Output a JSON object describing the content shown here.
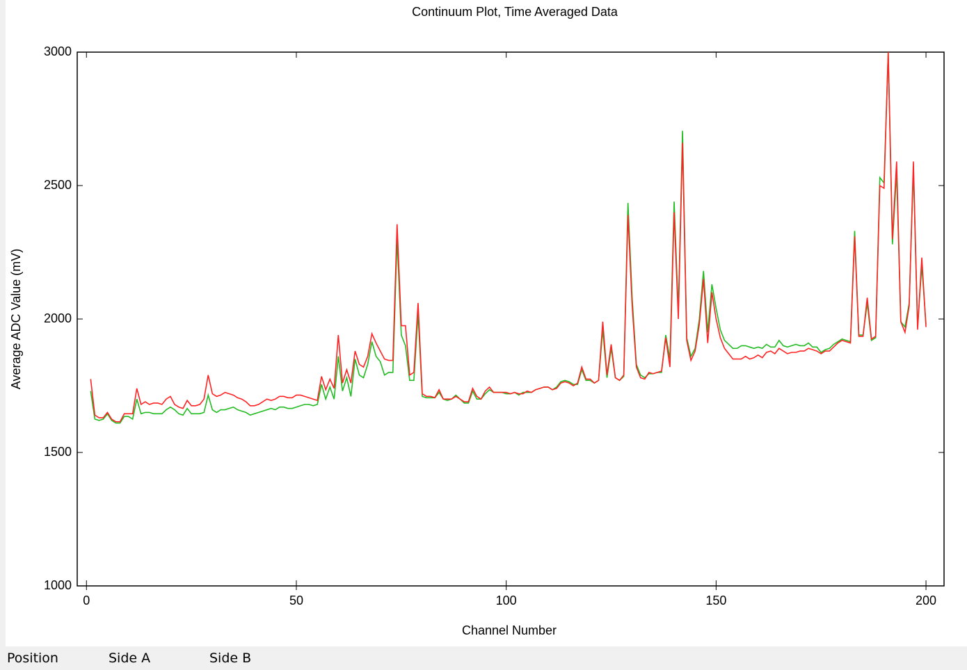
{
  "chart_data": {
    "type": "line",
    "title": "Continuum Plot, Time Averaged Data",
    "x_label": "Channel Number",
    "y_label": "Average ADC Value (mV)",
    "x": [
      1,
      2,
      3,
      4,
      5,
      6,
      7,
      8,
      9,
      10,
      11,
      12,
      13,
      14,
      15,
      16,
      17,
      18,
      19,
      20,
      21,
      22,
      23,
      24,
      25,
      26,
      27,
      28,
      29,
      30,
      31,
      32,
      33,
      34,
      35,
      36,
      37,
      38,
      39,
      40,
      41,
      42,
      43,
      44,
      45,
      46,
      47,
      48,
      49,
      50,
      51,
      52,
      53,
      54,
      55,
      56,
      57,
      58,
      59,
      60,
      61,
      62,
      63,
      64,
      65,
      66,
      67,
      68,
      69,
      70,
      71,
      72,
      73,
      74,
      75,
      76,
      77,
      78,
      79,
      80,
      81,
      82,
      83,
      84,
      85,
      86,
      87,
      88,
      89,
      90,
      91,
      92,
      93,
      94,
      95,
      96,
      97,
      98,
      99,
      100,
      101,
      102,
      103,
      104,
      105,
      106,
      107,
      108,
      109,
      110,
      111,
      112,
      113,
      114,
      115,
      116,
      117,
      118,
      119,
      120,
      121,
      122,
      123,
      124,
      125,
      126,
      127,
      128,
      129,
      130,
      131,
      132,
      133,
      134,
      135,
      136,
      137,
      138,
      139,
      140,
      141,
      142,
      143,
      144,
      145,
      146,
      147,
      148,
      149,
      150,
      151,
      152,
      153,
      154,
      155,
      156,
      157,
      158,
      159,
      160,
      161,
      162,
      163,
      164,
      165,
      166,
      167,
      168,
      169,
      170,
      171,
      172,
      173,
      174,
      175,
      176,
      177,
      178,
      179,
      180,
      181,
      182,
      183,
      184,
      185,
      186,
      187,
      188,
      189,
      190,
      191,
      192,
      193,
      194,
      195,
      196,
      197,
      198,
      199,
      200
    ],
    "series": [
      {
        "color": "#22bb22",
        "values": [
          1730,
          1625,
          1620,
          1625,
          1645,
          1620,
          1610,
          1610,
          1635,
          1635,
          1625,
          1700,
          1645,
          1650,
          1650,
          1645,
          1645,
          1645,
          1660,
          1670,
          1660,
          1645,
          1640,
          1665,
          1645,
          1645,
          1645,
          1650,
          1715,
          1660,
          1650,
          1660,
          1660,
          1665,
          1670,
          1660,
          1655,
          1650,
          1640,
          1645,
          1650,
          1655,
          1660,
          1665,
          1660,
          1670,
          1670,
          1665,
          1665,
          1670,
          1675,
          1680,
          1680,
          1675,
          1680,
          1755,
          1700,
          1745,
          1700,
          1860,
          1730,
          1780,
          1710,
          1850,
          1790,
          1780,
          1830,
          1915,
          1860,
          1840,
          1790,
          1800,
          1800,
          2300,
          1940,
          1900,
          1770,
          1770,
          2020,
          1710,
          1705,
          1705,
          1705,
          1725,
          1700,
          1695,
          1700,
          1715,
          1700,
          1685,
          1685,
          1730,
          1700,
          1700,
          1720,
          1735,
          1725,
          1725,
          1725,
          1720,
          1720,
          1725,
          1715,
          1725,
          1725,
          1725,
          1735,
          1740,
          1745,
          1745,
          1735,
          1745,
          1765,
          1770,
          1765,
          1755,
          1755,
          1810,
          1770,
          1770,
          1760,
          1770,
          1960,
          1780,
          1890,
          1780,
          1770,
          1785,
          2435,
          2080,
          1830,
          1790,
          1780,
          1795,
          1795,
          1800,
          1800,
          1940,
          1850,
          2440,
          2030,
          2705,
          1930,
          1860,
          1890,
          2000,
          2180,
          1950,
          2130,
          2040,
          1960,
          1920,
          1905,
          1890,
          1890,
          1900,
          1900,
          1895,
          1890,
          1895,
          1890,
          1905,
          1895,
          1895,
          1920,
          1900,
          1895,
          1900,
          1905,
          1900,
          1900,
          1910,
          1895,
          1895,
          1875,
          1885,
          1890,
          1905,
          1915,
          1925,
          1920,
          1915,
          2330,
          1940,
          1940,
          2060,
          1920,
          1930,
          2530,
          2510,
          3000,
          2280,
          2550,
          1990,
          1970,
          2060,
          2560,
          1970,
          2200,
          1980
        ]
      },
      {
        "color": "#ff2222",
        "values": [
          1775,
          1640,
          1630,
          1630,
          1650,
          1625,
          1615,
          1615,
          1645,
          1645,
          1645,
          1740,
          1680,
          1690,
          1680,
          1685,
          1685,
          1680,
          1700,
          1710,
          1680,
          1670,
          1665,
          1695,
          1675,
          1675,
          1680,
          1700,
          1790,
          1720,
          1710,
          1715,
          1725,
          1720,
          1715,
          1705,
          1700,
          1690,
          1675,
          1675,
          1680,
          1690,
          1700,
          1695,
          1700,
          1710,
          1710,
          1705,
          1705,
          1715,
          1715,
          1710,
          1705,
          1700,
          1695,
          1785,
          1735,
          1775,
          1740,
          1940,
          1760,
          1810,
          1760,
          1880,
          1830,
          1820,
          1860,
          1945,
          1910,
          1880,
          1850,
          1845,
          1845,
          2355,
          1975,
          1975,
          1790,
          1800,
          2060,
          1720,
          1710,
          1710,
          1705,
          1735,
          1700,
          1700,
          1700,
          1710,
          1700,
          1690,
          1690,
          1740,
          1710,
          1700,
          1730,
          1745,
          1725,
          1725,
          1725,
          1725,
          1720,
          1725,
          1720,
          1720,
          1730,
          1725,
          1735,
          1740,
          1745,
          1745,
          1735,
          1740,
          1760,
          1765,
          1760,
          1750,
          1760,
          1820,
          1775,
          1775,
          1760,
          1770,
          1990,
          1790,
          1905,
          1780,
          1770,
          1790,
          2390,
          2050,
          1820,
          1780,
          1775,
          1800,
          1795,
          1800,
          1805,
          1930,
          1820,
          2400,
          2000,
          2660,
          1920,
          1845,
          1880,
          1980,
          2150,
          1910,
          2100,
          2000,
          1930,
          1890,
          1870,
          1850,
          1850,
          1850,
          1860,
          1850,
          1855,
          1865,
          1855,
          1875,
          1880,
          1870,
          1890,
          1880,
          1870,
          1875,
          1875,
          1880,
          1880,
          1890,
          1885,
          1880,
          1870,
          1880,
          1880,
          1895,
          1910,
          1920,
          1915,
          1910,
          2310,
          1935,
          1935,
          2080,
          1925,
          1935,
          2500,
          2490,
          3000,
          2300,
          2590,
          1990,
          1950,
          2050,
          2590,
          1960,
          2230,
          1970
        ]
      }
    ],
    "xlim": [
      -2.2,
      204.3
    ],
    "ylim": [
      1000,
      3000
    ],
    "xticks": [
      0,
      50,
      100,
      150,
      200
    ],
    "yticks": [
      1000,
      1500,
      2000,
      2500,
      3000
    ],
    "grid": false
  },
  "status_bar": [
    "Position",
    "Side A",
    "Side B"
  ]
}
